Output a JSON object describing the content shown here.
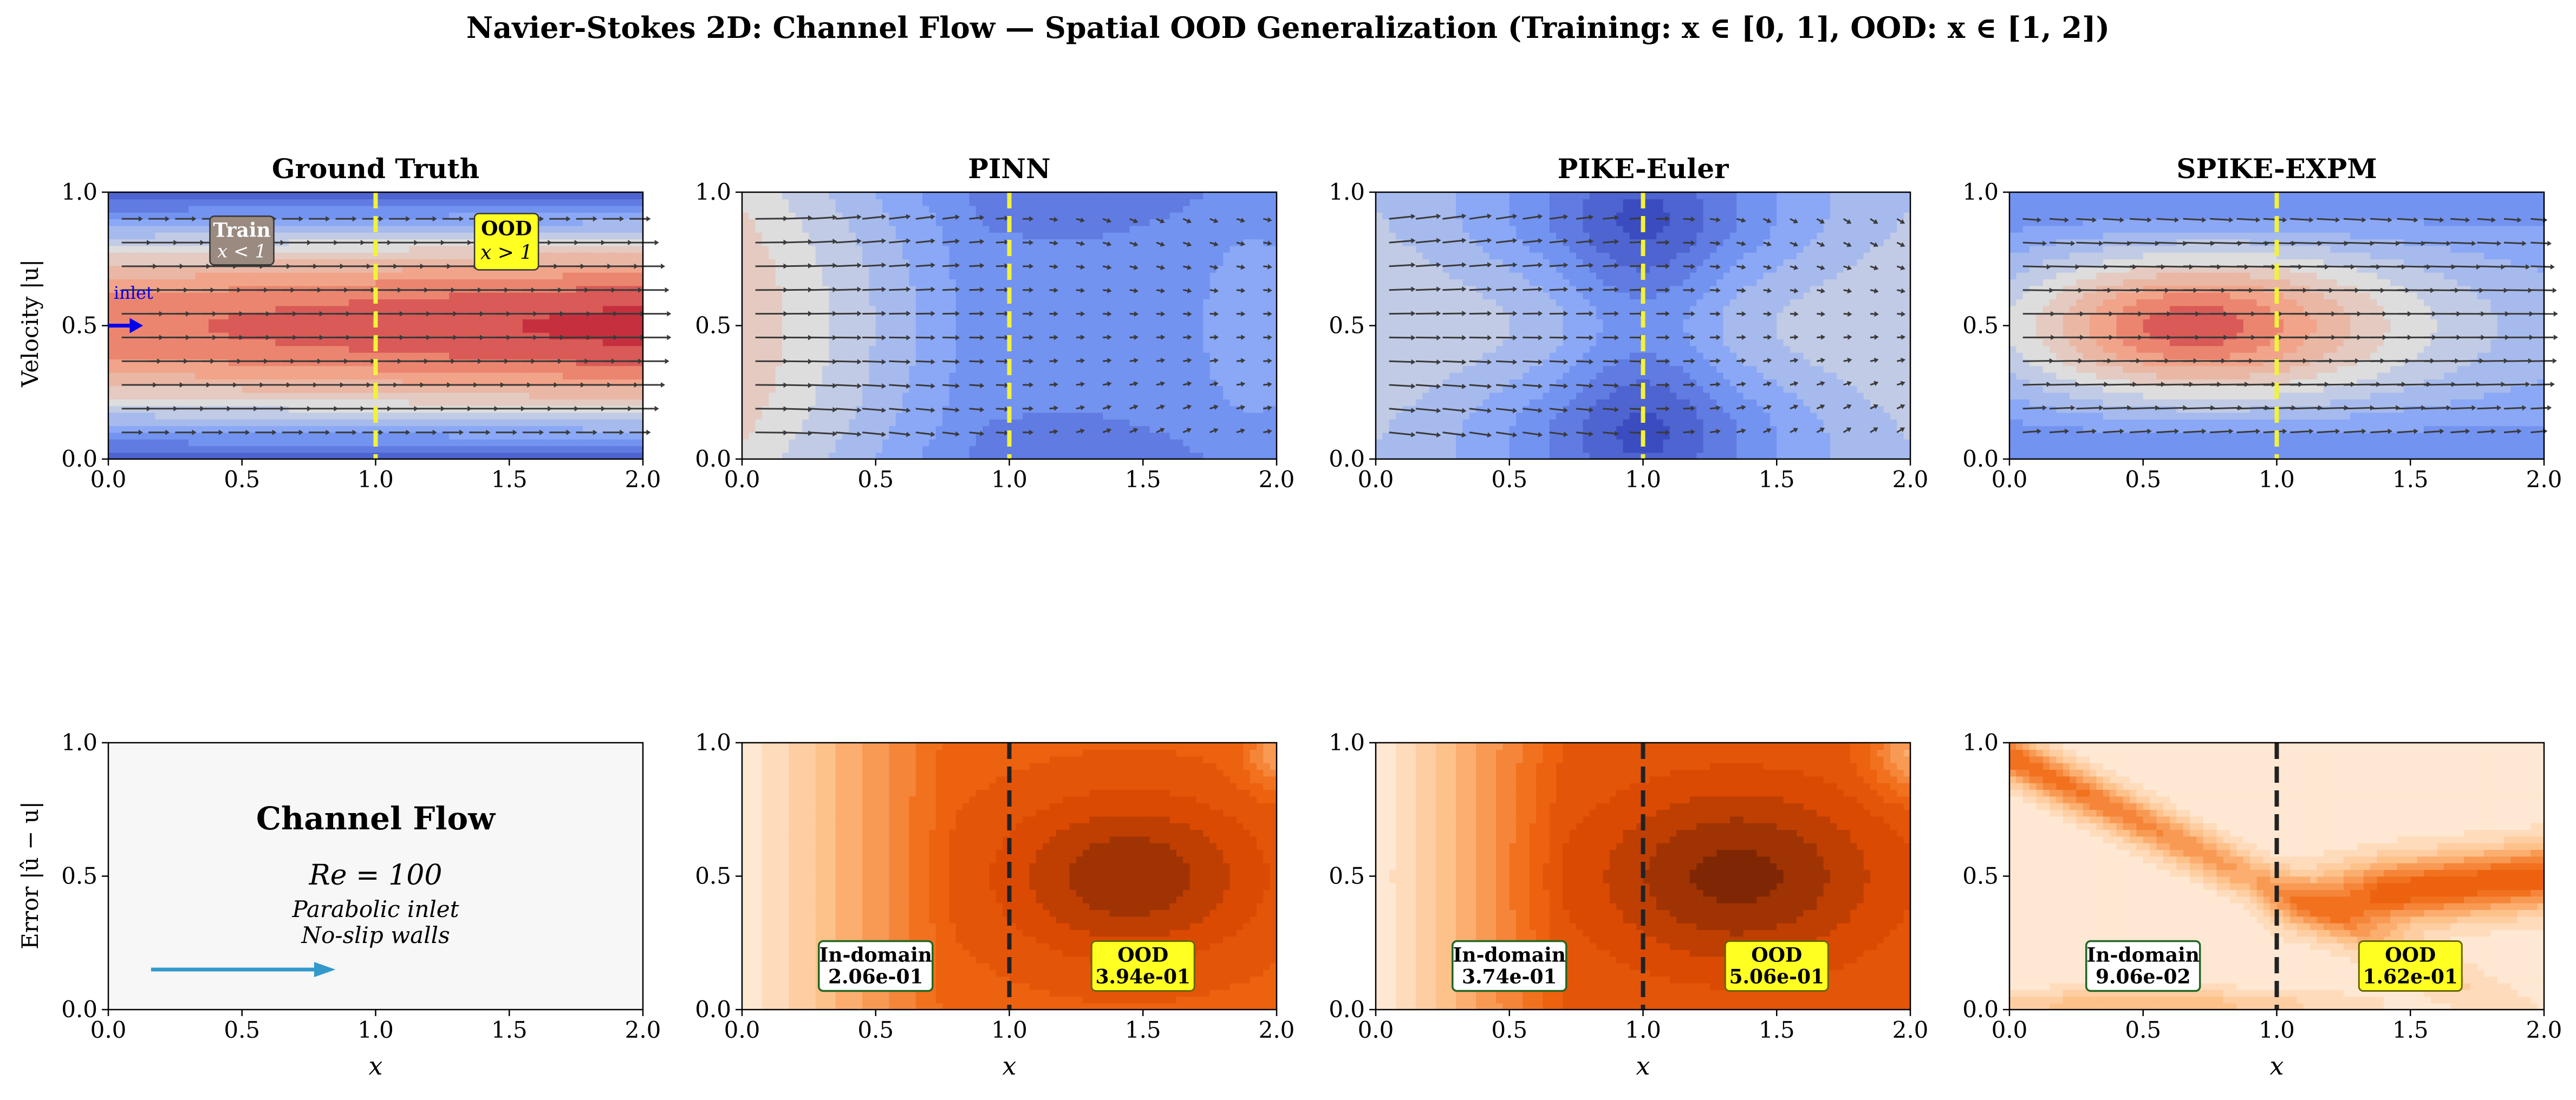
{
  "figure": {
    "suptitle": "Navier-Stokes 2D: Channel Flow — Spatial OOD Generalization (Training: x ∈ [0, 1], OOD: x ∈ [1, 2])",
    "row_labels": {
      "velocity": "Velocity |u|",
      "error": "Error |û − u|"
    },
    "x_axis_label": "x",
    "legend_train": {
      "line1": "Train",
      "line2": "x < 1"
    },
    "legend_ood": {
      "line1": "OOD",
      "line2": "x > 1"
    },
    "inlet_label": "inlet",
    "info_panel": {
      "title": "Channel Flow",
      "re": "Re = 100",
      "line1": "Parabolic inlet",
      "line2": "No-slip walls"
    },
    "in_domain_label": "In-domain",
    "ood_label": "OOD"
  },
  "colors": {
    "train_box": "#9a8a80",
    "ood_box": "#ffff22",
    "boundary_line": "#f2f23a",
    "arrow": "#3a3a3a",
    "inlet": "#0000ee",
    "info_arrow": "#3399cc"
  },
  "chart_data": [
    {
      "type": "heatmap",
      "panel": "velocity",
      "title": "Ground Truth",
      "field": "truth",
      "xlim": [
        0,
        2
      ],
      "ylim": [
        0,
        1
      ],
      "xticks": [
        "0.0",
        "0.5",
        "1.0",
        "1.5",
        "2.0"
      ],
      "yticks": [
        "0.0",
        "0.5",
        "1.0"
      ],
      "boundary_x": 1.0
    },
    {
      "type": "heatmap",
      "panel": "velocity",
      "title": "PINN",
      "field": "pinn",
      "xlim": [
        0,
        2
      ],
      "ylim": [
        0,
        1
      ],
      "xticks": [
        "0.0",
        "0.5",
        "1.0",
        "1.5",
        "2.0"
      ],
      "yticks": [
        "0.0",
        "0.5",
        "1.0"
      ],
      "boundary_x": 1.0
    },
    {
      "type": "heatmap",
      "panel": "velocity",
      "title": "PIKE-Euler",
      "field": "euler",
      "xlim": [
        0,
        2
      ],
      "ylim": [
        0,
        1
      ],
      "xticks": [
        "0.0",
        "0.5",
        "1.0",
        "1.5",
        "2.0"
      ],
      "yticks": [
        "0.0",
        "0.5",
        "1.0"
      ],
      "boundary_x": 1.0
    },
    {
      "type": "heatmap",
      "panel": "velocity",
      "title": "SPIKE-EXPM",
      "field": "expm",
      "xlim": [
        0,
        2
      ],
      "ylim": [
        0,
        1
      ],
      "xticks": [
        "0.0",
        "0.5",
        "1.0",
        "1.5",
        "2.0"
      ],
      "yticks": [
        "0.0",
        "0.5",
        "1.0"
      ],
      "boundary_x": 1.0
    },
    {
      "type": "heatmap",
      "panel": "error",
      "title": "",
      "field": "info",
      "xlim": [
        0,
        2
      ],
      "ylim": [
        0,
        1
      ],
      "xticks": [
        "0.0",
        "0.5",
        "1.0",
        "1.5",
        "2.0"
      ],
      "yticks": [
        "0.0",
        "0.5",
        "1.0"
      ]
    },
    {
      "type": "heatmap",
      "panel": "error",
      "title": "",
      "field": "err_pinn",
      "xlim": [
        0,
        2
      ],
      "ylim": [
        0,
        1
      ],
      "xticks": [
        "0.0",
        "0.5",
        "1.0",
        "1.5",
        "2.0"
      ],
      "yticks": [
        "0.0",
        "0.5",
        "1.0"
      ],
      "boundary_x": 1.0,
      "in_domain_error": "2.06e-01",
      "ood_error": "3.94e-01"
    },
    {
      "type": "heatmap",
      "panel": "error",
      "title": "",
      "field": "err_euler",
      "xlim": [
        0,
        2
      ],
      "ylim": [
        0,
        1
      ],
      "xticks": [
        "0.0",
        "0.5",
        "1.0",
        "1.5",
        "2.0"
      ],
      "yticks": [
        "0.0",
        "0.5",
        "1.0"
      ],
      "boundary_x": 1.0,
      "in_domain_error": "3.74e-01",
      "ood_error": "5.06e-01"
    },
    {
      "type": "heatmap",
      "panel": "error",
      "title": "",
      "field": "err_expm",
      "xlim": [
        0,
        2
      ],
      "ylim": [
        0,
        1
      ],
      "xticks": [
        "0.0",
        "0.5",
        "1.0",
        "1.5",
        "2.0"
      ],
      "yticks": [
        "0.0",
        "0.5",
        "1.0"
      ],
      "boundary_x": 1.0,
      "in_domain_error": "9.06e-02",
      "ood_error": "1.62e-01"
    }
  ]
}
